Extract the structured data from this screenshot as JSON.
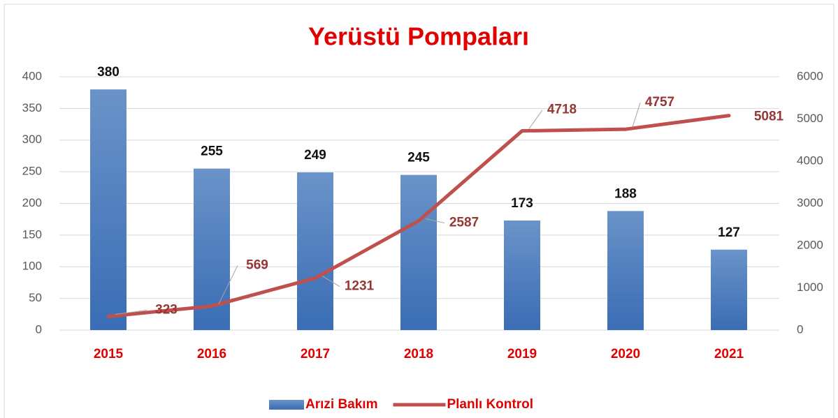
{
  "chart_data": {
    "type": "bar_line",
    "title": "Yerüstü Pompaları",
    "categories": [
      "2015",
      "2016",
      "2017",
      "2018",
      "2019",
      "2020",
      "2021"
    ],
    "series": [
      {
        "name": "Arızi Bakım",
        "type": "bar",
        "color": "#4f81bd",
        "values": [
          380,
          255,
          249,
          245,
          173,
          188,
          127
        ]
      },
      {
        "name": "Planlı Kontrol",
        "type": "line",
        "axis": "y2",
        "color": "#c0504d",
        "values": [
          323,
          569,
          1231,
          2587,
          4718,
          4757,
          5081
        ]
      }
    ],
    "ylim": [
      0,
      400
    ],
    "yticks": [
      0,
      50,
      100,
      150,
      200,
      250,
      300,
      350,
      400
    ],
    "y2lim": [
      0,
      6000
    ],
    "y2ticks": [
      0,
      1000,
      2000,
      3000,
      4000,
      5000,
      6000
    ],
    "grid": true,
    "legend": "bottom"
  }
}
